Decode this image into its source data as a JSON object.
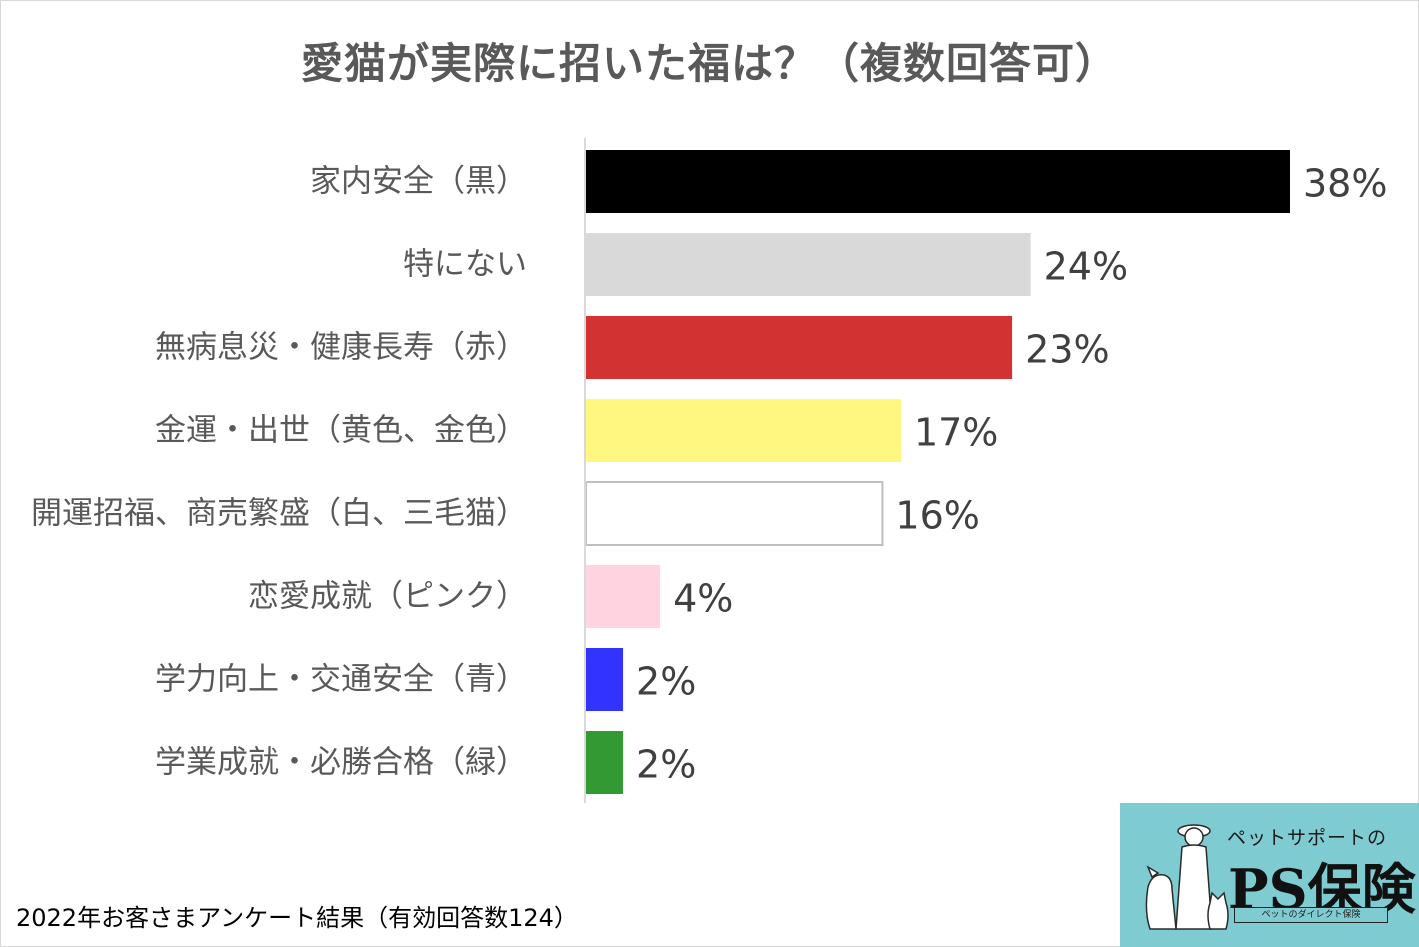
{
  "chart_data": {
    "type": "bar",
    "orientation": "horizontal",
    "title": "愛猫が実際に招いた福は？（複数回答可）",
    "categories": [
      "家内安全（黒）",
      "特にない",
      "無病息災・健康長寿（赤）",
      "金運・出世（黄色、金色）",
      "開運招福、商売繁盛（白、三毛猫）",
      "恋愛成就（ピンク）",
      "学力向上・交通安全（青）",
      "学業成就・必勝合格（緑）"
    ],
    "values": [
      38,
      24,
      23,
      17,
      16,
      4,
      2,
      2
    ],
    "value_labels": [
      "38%",
      "24%",
      "23%",
      "17%",
      "16%",
      "4%",
      "2%",
      "2%"
    ],
    "bar_colors": [
      "#000000",
      "#d9d9d9",
      "#d33232",
      "#fff77f",
      "#ffffff",
      "#ffd3e0",
      "#3333ff",
      "#339933"
    ],
    "xlim": [
      0,
      40
    ],
    "grid": false,
    "legend": "none"
  },
  "footnote": "2022年お客さまアンケート結果（有効回答数124）",
  "logo": {
    "tagline": "ペットサポートの",
    "brand": "PS保険",
    "subline": "ペットのダイレクト保険"
  }
}
